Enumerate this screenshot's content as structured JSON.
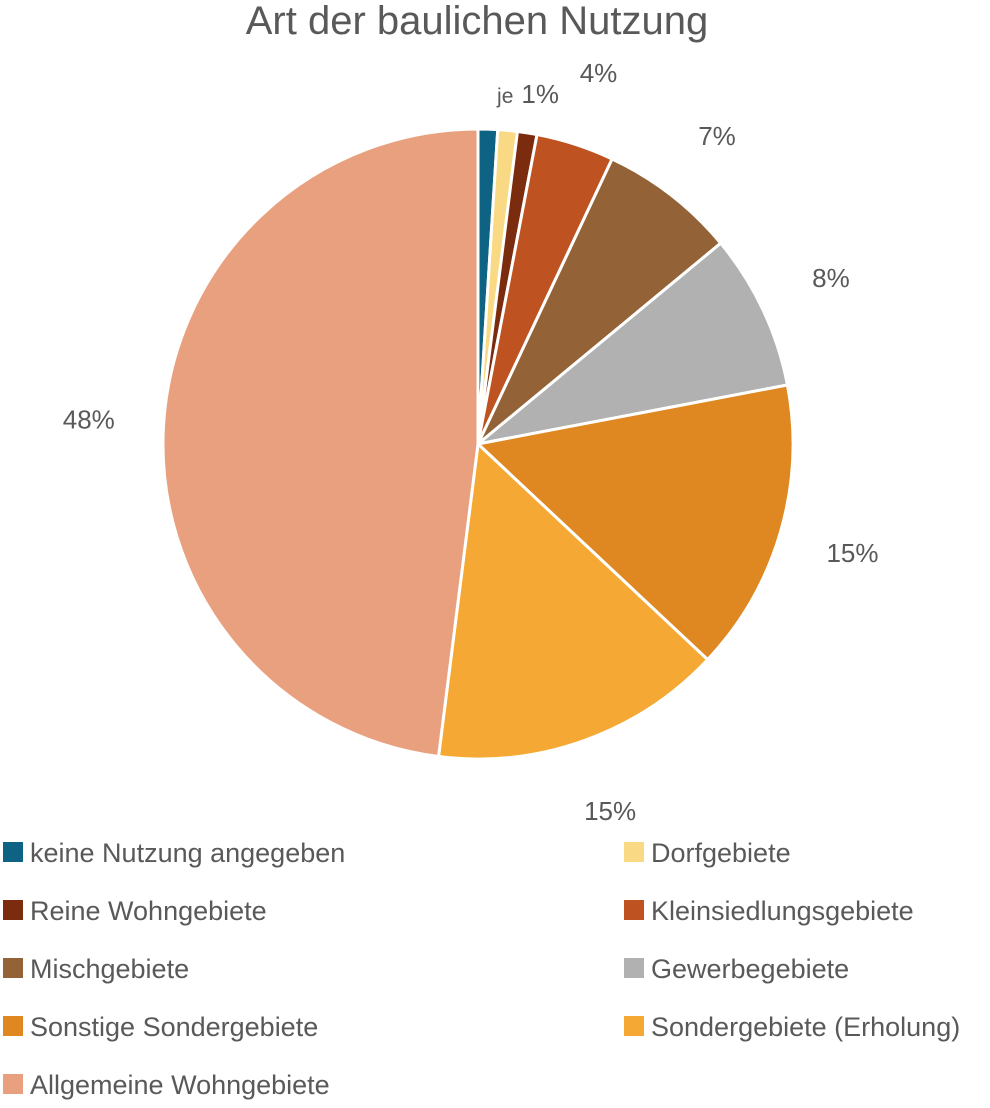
{
  "chart_data": {
    "type": "pie",
    "title": "Art der baulichen Nutzung",
    "legend_position": "bottom",
    "start_angle": "12 o'clock",
    "direction": "clockwise",
    "slices": [
      {
        "name": "keine Nutzung angegeben",
        "value": 1,
        "color": "#0E6384",
        "label": ""
      },
      {
        "name": "Dorfgebiete",
        "value": 1,
        "color": "#F9D983",
        "label": ""
      },
      {
        "name": "Reine Wohngebiete",
        "value": 1,
        "color": "#7B2C0E",
        "label": ""
      },
      {
        "name": "Kleinsiedlungsgebiete",
        "value": 4,
        "color": "#BF5221",
        "label": "4%"
      },
      {
        "name": "Mischgebiete",
        "value": 7,
        "color": "#936337",
        "label": "7%"
      },
      {
        "name": "Gewerbegebiete",
        "value": 8,
        "color": "#B1B1B1",
        "label": "8%"
      },
      {
        "name": "Sonstige Sondergebiete",
        "value": 15,
        "color": "#DF8720",
        "label": "15%"
      },
      {
        "name": "Sondergebiete (Erholung)",
        "value": 15,
        "color": "#F5A934",
        "label": "15%"
      },
      {
        "name": "Allgemeine Wohngebiete",
        "value": 48,
        "color": "#E8A07E",
        "label": "48%"
      }
    ],
    "group_label": {
      "prefix": "je",
      "value": "1%"
    }
  }
}
